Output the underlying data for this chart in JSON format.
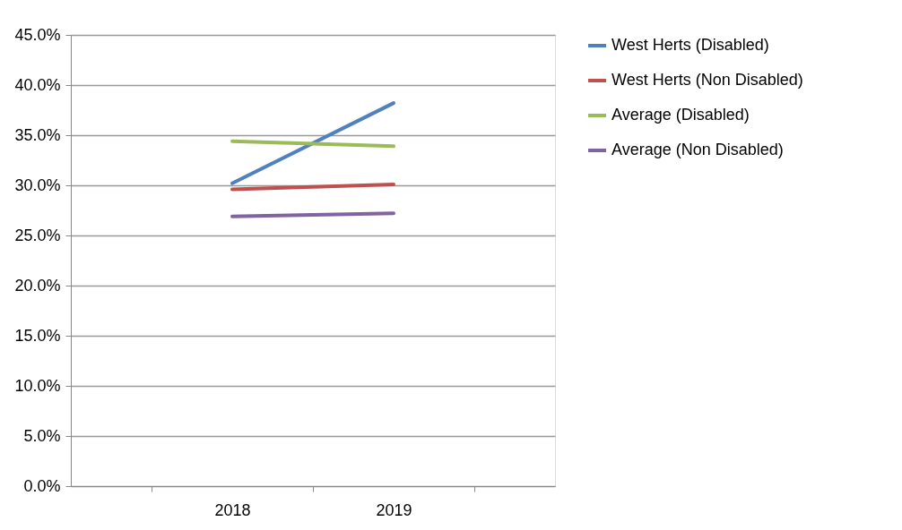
{
  "chart_data": {
    "type": "line",
    "categories": [
      "2018",
      "2019"
    ],
    "series": [
      {
        "name": "West Herts (Disabled)",
        "color": "#4f81bd",
        "values": [
          30.2,
          38.2
        ]
      },
      {
        "name": "West Herts (Non Disabled)",
        "color": "#c0504d",
        "values": [
          29.6,
          30.1
        ]
      },
      {
        "name": "Average (Disabled)",
        "color": "#9bbb59",
        "values": [
          34.4,
          33.9
        ]
      },
      {
        "name": "Average  (Non Disabled)",
        "color": "#8064a2",
        "values": [
          26.9,
          27.2
        ]
      }
    ],
    "ylim": [
      0,
      45
    ],
    "yticks": [
      {
        "value": 0,
        "label": "0.0%"
      },
      {
        "value": 5,
        "label": "5.0%"
      },
      {
        "value": 10,
        "label": "10.0%"
      },
      {
        "value": 15,
        "label": "15.0%"
      },
      {
        "value": 20,
        "label": "20.0%"
      },
      {
        "value": 25,
        "label": "25.0%"
      },
      {
        "value": 30,
        "label": "30.0%"
      },
      {
        "value": 35,
        "label": "35.0%"
      },
      {
        "value": 40,
        "label": "40.0%"
      },
      {
        "value": 45,
        "label": "45.0%"
      }
    ],
    "grid": "y",
    "legend": "right",
    "marker": "none",
    "line_style": "solid"
  }
}
